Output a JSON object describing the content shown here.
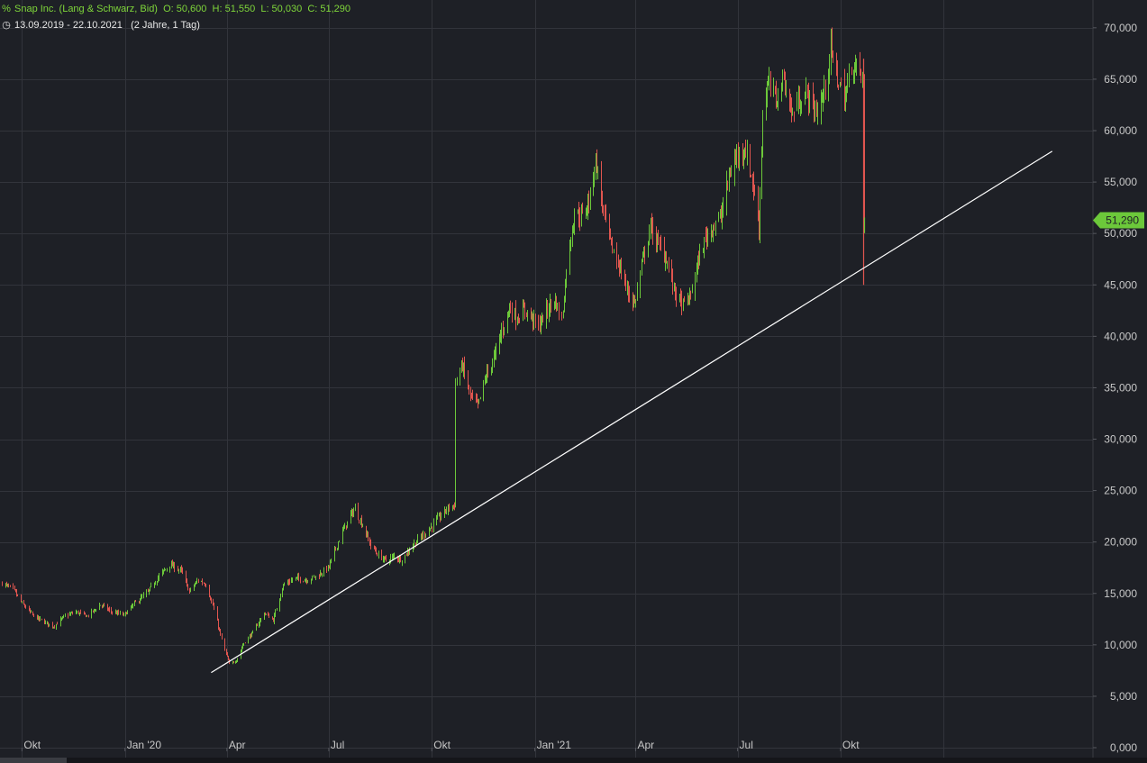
{
  "header": {
    "icon": "percent-chart-icon",
    "title": "Snap Inc. (Lang & Schwarz, Bid)",
    "ohlc": "O: 50,600  H: 51,550  L: 50,030  C: 51,290",
    "date_icon": "clock-icon",
    "date_range": "13.09.2019 - 22.10.2021",
    "period": "(2 Jahre, 1 Tag)"
  },
  "colors": {
    "background": "#1e2026",
    "grid": "#32343b",
    "up": "#6cc83a",
    "down": "#e0554f",
    "trend": "#ffffff",
    "last_badge": "#6cc83a"
  },
  "chart_data": {
    "type": "ohlc",
    "title": "Snap Inc. (Lang & Schwarz, Bid)",
    "x_range": [
      "2019-09-13",
      "2021-10-22"
    ],
    "ylim": [
      0,
      72000
    ],
    "y_ticks": [
      "70,000",
      "65,000",
      "60,000",
      "55,000",
      "50,000",
      "45,000",
      "40,000",
      "35,000",
      "30,000",
      "25,000",
      "20,000",
      "15,000",
      "10,000",
      "5,000",
      "0,000"
    ],
    "y_tick_values": [
      70000,
      65000,
      60000,
      55000,
      50000,
      45000,
      40000,
      35000,
      30000,
      25000,
      20000,
      15000,
      10000,
      5000,
      0
    ],
    "x_ticks": [
      "Okt",
      "Jan '20",
      "Apr",
      "Jul",
      "Okt",
      "Jan '21",
      "Apr",
      "Jul",
      "Okt"
    ],
    "x_tick_dates": [
      "2019-10-01",
      "2020-01-01",
      "2020-04-01",
      "2020-07-01",
      "2020-10-01",
      "2021-01-01",
      "2021-04-01",
      "2021-07-01",
      "2021-10-01"
    ],
    "last_value_label": "51,290",
    "last_value": 51290,
    "grid": true,
    "series": [
      {
        "name": "Snap Inc. (Lang & Schwarz, Bid)",
        "points": [
          [
            "2019-09-13",
            16000
          ],
          [
            "2019-09-23",
            15400
          ],
          [
            "2019-10-01",
            14000
          ],
          [
            "2019-10-11",
            12800
          ],
          [
            "2019-10-21",
            12200
          ],
          [
            "2019-10-29",
            11800
          ],
          [
            "2019-11-08",
            12800
          ],
          [
            "2019-11-18",
            13200
          ],
          [
            "2019-11-28",
            12800
          ],
          [
            "2019-12-10",
            13900
          ],
          [
            "2019-12-20",
            13200
          ],
          [
            "2019-12-31",
            12900
          ],
          [
            "2020-01-10",
            14100
          ],
          [
            "2020-01-21",
            15100
          ],
          [
            "2020-01-31",
            16700
          ],
          [
            "2020-02-10",
            17800
          ],
          [
            "2020-02-20",
            17200
          ],
          [
            "2020-02-27",
            15200
          ],
          [
            "2020-03-06",
            16300
          ],
          [
            "2020-03-13",
            15900
          ],
          [
            "2020-03-20",
            13500
          ],
          [
            "2020-03-27",
            10500
          ],
          [
            "2020-04-03",
            8100
          ],
          [
            "2020-04-09",
            8500
          ],
          [
            "2020-04-16",
            10200
          ],
          [
            "2020-04-24",
            11200
          ],
          [
            "2020-05-04",
            13100
          ],
          [
            "2020-05-12",
            12400
          ],
          [
            "2020-05-21",
            15800
          ],
          [
            "2020-06-01",
            16500
          ],
          [
            "2020-06-11",
            16300
          ],
          [
            "2020-06-22",
            16800
          ],
          [
            "2020-07-01",
            17600
          ],
          [
            "2020-07-10",
            20300
          ],
          [
            "2020-07-20",
            22600
          ],
          [
            "2020-07-24",
            23200
          ],
          [
            "2020-07-31",
            21600
          ],
          [
            "2020-08-07",
            19700
          ],
          [
            "2020-08-14",
            18700
          ],
          [
            "2020-08-21",
            18200
          ],
          [
            "2020-08-28",
            18600
          ],
          [
            "2020-09-04",
            18300
          ],
          [
            "2020-09-11",
            19300
          ],
          [
            "2020-09-18",
            20200
          ],
          [
            "2020-09-25",
            20900
          ],
          [
            "2020-10-02",
            21700
          ],
          [
            "2020-10-09",
            22600
          ],
          [
            "2020-10-16",
            23400
          ],
          [
            "2020-10-21",
            23600
          ],
          [
            "2020-10-22",
            35500
          ],
          [
            "2020-10-28",
            37200
          ],
          [
            "2020-11-04",
            34200
          ],
          [
            "2020-11-11",
            33200
          ],
          [
            "2020-11-18",
            36100
          ],
          [
            "2020-11-25",
            37800
          ],
          [
            "2020-12-02",
            40500
          ],
          [
            "2020-12-09",
            42800
          ],
          [
            "2020-12-16",
            41800
          ],
          [
            "2020-12-23",
            42600
          ],
          [
            "2021-01-04",
            41000
          ],
          [
            "2021-01-11",
            42400
          ],
          [
            "2021-01-18",
            43700
          ],
          [
            "2021-01-25",
            41500
          ],
          [
            "2021-01-29",
            46500
          ],
          [
            "2021-02-05",
            52100
          ],
          [
            "2021-02-12",
            51600
          ],
          [
            "2021-02-19",
            53600
          ],
          [
            "2021-02-24",
            57300
          ],
          [
            "2021-03-03",
            52100
          ],
          [
            "2021-03-10",
            48700
          ],
          [
            "2021-03-17",
            46900
          ],
          [
            "2021-03-24",
            44500
          ],
          [
            "2021-03-31",
            43200
          ],
          [
            "2021-04-07",
            47400
          ],
          [
            "2021-04-14",
            50600
          ],
          [
            "2021-04-21",
            48900
          ],
          [
            "2021-04-28",
            47600
          ],
          [
            "2021-05-05",
            44600
          ],
          [
            "2021-05-12",
            43000
          ],
          [
            "2021-05-19",
            43700
          ],
          [
            "2021-05-26",
            47000
          ],
          [
            "2021-06-02",
            49600
          ],
          [
            "2021-06-09",
            50800
          ],
          [
            "2021-06-16",
            51600
          ],
          [
            "2021-06-23",
            55500
          ],
          [
            "2021-06-30",
            57600
          ],
          [
            "2021-07-07",
            58400
          ],
          [
            "2021-07-14",
            55200
          ],
          [
            "2021-07-20",
            50600
          ],
          [
            "2021-07-23",
            61800
          ],
          [
            "2021-07-28",
            64600
          ],
          [
            "2021-08-04",
            63100
          ],
          [
            "2021-08-11",
            65100
          ],
          [
            "2021-08-18",
            61600
          ],
          [
            "2021-08-25",
            62900
          ],
          [
            "2021-09-01",
            63600
          ],
          [
            "2021-09-08",
            61800
          ],
          [
            "2021-09-15",
            63200
          ],
          [
            "2021-09-22",
            67800
          ],
          [
            "2021-09-27",
            65500
          ],
          [
            "2021-10-04",
            63000
          ],
          [
            "2021-10-11",
            66400
          ],
          [
            "2021-10-18",
            65800
          ],
          [
            "2021-10-21",
            64800
          ],
          [
            "2021-10-22",
            51290
          ]
        ]
      }
    ],
    "trendline": {
      "from": [
        "2020-03-18",
        7300
      ],
      "to": [
        "2022-04-08",
        58000
      ]
    }
  }
}
